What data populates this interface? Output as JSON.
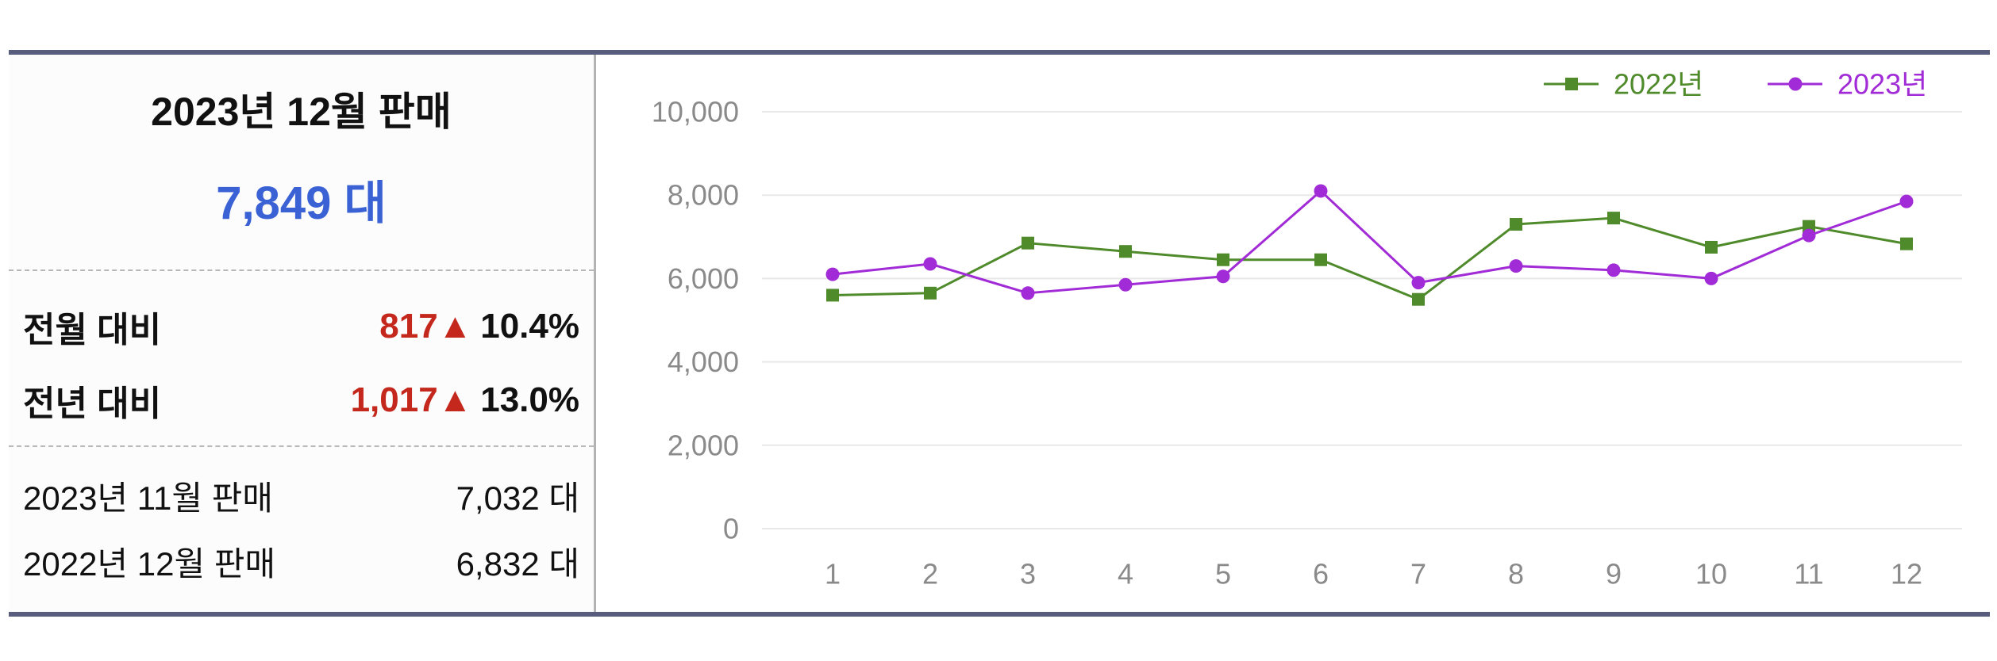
{
  "summary": {
    "title": "2023년 12월 판매",
    "total": "7,849 대",
    "comparisons": [
      {
        "label": "전월 대비",
        "diff": "817",
        "arrow": "▲",
        "rate": "10.4%"
      },
      {
        "label": "전년 대비",
        "diff": "1,017",
        "arrow": "▲",
        "rate": "13.0%"
      }
    ],
    "references": [
      {
        "label": "2023년 11월 판매",
        "value": "7,032 대"
      },
      {
        "label": "2022년 12월 판매",
        "value": "6,832 대"
      }
    ]
  },
  "colors": {
    "total_blue": "#3a62d4",
    "increase_red": "#c4281c",
    "frame_border": "#585d7e"
  },
  "chart_data": {
    "type": "line",
    "title": "",
    "xlabel": "",
    "ylabel": "",
    "categories": [
      "1",
      "2",
      "3",
      "4",
      "5",
      "6",
      "7",
      "8",
      "9",
      "10",
      "11",
      "12"
    ],
    "series": [
      {
        "name": "2022년",
        "color": "#4f8a2b",
        "marker": "square",
        "values": [
          5600,
          5650,
          6850,
          6650,
          6450,
          6450,
          5500,
          7300,
          7450,
          6750,
          7250,
          6832
        ]
      },
      {
        "name": "2023년",
        "color": "#a12bd6",
        "marker": "circle",
        "values": [
          6100,
          6350,
          5650,
          5850,
          6050,
          8100,
          5900,
          6300,
          6200,
          6000,
          7032,
          7849
        ]
      }
    ],
    "ylim": [
      0,
      10000
    ],
    "yticks": [
      0,
      2000,
      4000,
      6000,
      8000,
      10000
    ],
    "ytick_labels": [
      "0",
      "2,000",
      "4,000",
      "6,000",
      "8,000",
      "10,000"
    ],
    "grid": true,
    "legend": "top-right"
  }
}
